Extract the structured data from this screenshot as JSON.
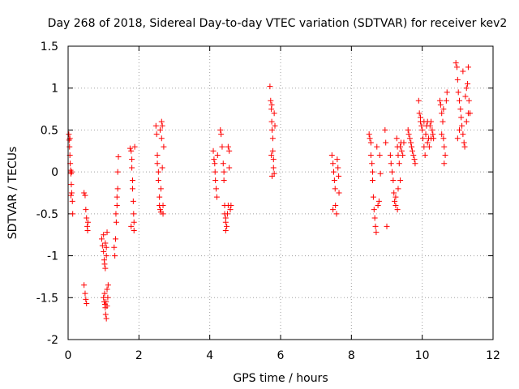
{
  "chart_data": {
    "type": "scatter",
    "title": "Day 268 of 2018, Sidereal Day-to-day VTEC variation (SDTVAR) for receiver kev2",
    "xlabel": "GPS time / hours",
    "ylabel": "SDTVAR / TECUs",
    "xlim": [
      0,
      12
    ],
    "ylim": [
      -2,
      1.5
    ],
    "xticks": [
      0,
      2,
      4,
      6,
      8,
      10,
      12
    ],
    "xtick_labels": [
      "0",
      "2",
      "4",
      "6",
      "8",
      "10",
      "12"
    ],
    "yticks": [
      -2,
      -1.5,
      -1,
      -0.5,
      0,
      0.5,
      1,
      1.5
    ],
    "ytick_labels": [
      "-2",
      "-1.5",
      "-1",
      "-0.5",
      "0",
      "0.5",
      "1",
      "1.5"
    ],
    "grid": true,
    "marker": "+",
    "color": "#ff0000",
    "series": [
      {
        "name": "kev2",
        "points": [
          [
            0.02,
            0.45
          ],
          [
            0.03,
            0.38
          ],
          [
            0.04,
            0.3
          ],
          [
            0.05,
            0.2
          ],
          [
            0.06,
            0.1
          ],
          [
            0.07,
            0.02
          ],
          [
            0.08,
            -0.02
          ],
          [
            0.09,
            -0.15
          ],
          [
            0.1,
            -0.25
          ],
          [
            0.12,
            -0.35
          ],
          [
            0.13,
            -0.5
          ],
          [
            0.05,
            0.4
          ],
          [
            0.08,
            -0.28
          ],
          [
            0.1,
            0.0
          ],
          [
            0.45,
            -0.25
          ],
          [
            0.48,
            -0.28
          ],
          [
            0.5,
            -0.45
          ],
          [
            0.52,
            -0.55
          ],
          [
            0.54,
            -0.65
          ],
          [
            0.55,
            -0.7
          ],
          [
            0.56,
            -0.6
          ],
          [
            0.45,
            -1.35
          ],
          [
            0.48,
            -1.45
          ],
          [
            0.5,
            -1.52
          ],
          [
            0.52,
            -1.57
          ],
          [
            0.95,
            -0.8
          ],
          [
            0.97,
            -0.88
          ],
          [
            1.0,
            -0.95
          ],
          [
            1.02,
            -1.05
          ],
          [
            1.03,
            -1.1
          ],
          [
            1.05,
            -1.15
          ],
          [
            1.0,
            -0.75
          ],
          [
            1.05,
            -0.85
          ],
          [
            1.08,
            -0.9
          ],
          [
            1.1,
            -0.72
          ],
          [
            1.08,
            -1.0
          ],
          [
            1.0,
            -1.5
          ],
          [
            1.02,
            -1.55
          ],
          [
            1.04,
            -1.58
          ],
          [
            1.05,
            -1.62
          ],
          [
            1.06,
            -1.7
          ],
          [
            1.08,
            -1.75
          ],
          [
            1.1,
            -1.4
          ],
          [
            1.12,
            -1.5
          ],
          [
            1.1,
            -1.6
          ],
          [
            1.13,
            -1.35
          ],
          [
            1.03,
            -1.45
          ],
          [
            1.07,
            -1.55
          ],
          [
            1.3,
            -0.9
          ],
          [
            1.32,
            -1.0
          ],
          [
            1.34,
            -0.8
          ],
          [
            1.36,
            -0.6
          ],
          [
            1.38,
            -0.4
          ],
          [
            1.38,
            -0.3
          ],
          [
            1.4,
            -0.2
          ],
          [
            1.4,
            0.0
          ],
          [
            1.42,
            0.18
          ],
          [
            1.35,
            -0.5
          ],
          [
            1.75,
            0.28
          ],
          [
            1.78,
            0.25
          ],
          [
            1.8,
            0.15
          ],
          [
            1.8,
            0.05
          ],
          [
            1.82,
            -0.1
          ],
          [
            1.82,
            -0.2
          ],
          [
            1.84,
            -0.35
          ],
          [
            1.85,
            -0.5
          ],
          [
            1.86,
            -0.6
          ],
          [
            1.86,
            -0.7
          ],
          [
            1.88,
            0.3
          ],
          [
            1.78,
            -0.65
          ],
          [
            2.48,
            0.55
          ],
          [
            2.5,
            0.45
          ],
          [
            2.52,
            0.2
          ],
          [
            2.52,
            0.1
          ],
          [
            2.55,
            0.0
          ],
          [
            2.55,
            -0.1
          ],
          [
            2.58,
            -0.3
          ],
          [
            2.58,
            -0.4
          ],
          [
            2.6,
            -0.45
          ],
          [
            2.62,
            -0.48
          ],
          [
            2.64,
            0.4
          ],
          [
            2.64,
            0.6
          ],
          [
            2.66,
            0.55
          ],
          [
            2.66,
            0.05
          ],
          [
            2.68,
            -0.4
          ],
          [
            2.68,
            -0.5
          ],
          [
            2.7,
            0.3
          ],
          [
            2.6,
            0.5
          ],
          [
            2.62,
            -0.2
          ],
          [
            4.1,
            0.25
          ],
          [
            4.12,
            0.15
          ],
          [
            4.14,
            0.1
          ],
          [
            4.15,
            0.0
          ],
          [
            4.16,
            -0.1
          ],
          [
            4.18,
            -0.2
          ],
          [
            4.2,
            -0.3
          ],
          [
            4.22,
            0.2
          ],
          [
            4.3,
            0.5
          ],
          [
            4.32,
            0.45
          ],
          [
            4.35,
            0.3
          ],
          [
            4.38,
            0.1
          ],
          [
            4.4,
            0.0
          ],
          [
            4.4,
            -0.1
          ],
          [
            4.42,
            -0.4
          ],
          [
            4.42,
            -0.5
          ],
          [
            4.45,
            -0.55
          ],
          [
            4.45,
            -0.6
          ],
          [
            4.48,
            -0.65
          ],
          [
            4.5,
            -0.5
          ],
          [
            4.52,
            -0.4
          ],
          [
            4.52,
            0.3
          ],
          [
            4.55,
            0.25
          ],
          [
            4.55,
            0.05
          ],
          [
            4.58,
            -0.45
          ],
          [
            4.6,
            -0.4
          ],
          [
            4.45,
            -0.7
          ],
          [
            5.7,
            1.02
          ],
          [
            5.72,
            0.85
          ],
          [
            5.74,
            0.75
          ],
          [
            5.75,
            0.6
          ],
          [
            5.76,
            0.5
          ],
          [
            5.78,
            0.4
          ],
          [
            5.78,
            0.25
          ],
          [
            5.8,
            0.15
          ],
          [
            5.8,
            0.05
          ],
          [
            5.82,
            -0.02
          ],
          [
            5.75,
            0.8
          ],
          [
            5.82,
            0.7
          ],
          [
            5.84,
            0.55
          ],
          [
            5.74,
            0.2
          ],
          [
            5.76,
            -0.05
          ],
          [
            7.45,
            0.2
          ],
          [
            7.48,
            0.1
          ],
          [
            7.5,
            0.0
          ],
          [
            7.52,
            -0.1
          ],
          [
            7.54,
            -0.2
          ],
          [
            7.55,
            -0.4
          ],
          [
            7.58,
            -0.5
          ],
          [
            7.6,
            0.15
          ],
          [
            7.62,
            0.05
          ],
          [
            7.64,
            -0.05
          ],
          [
            7.65,
            -0.25
          ],
          [
            7.48,
            -0.45
          ],
          [
            8.5,
            0.45
          ],
          [
            8.52,
            0.4
          ],
          [
            8.55,
            0.35
          ],
          [
            8.55,
            0.2
          ],
          [
            8.58,
            0.1
          ],
          [
            8.6,
            0.0
          ],
          [
            8.6,
            -0.1
          ],
          [
            8.62,
            -0.3
          ],
          [
            8.64,
            -0.45
          ],
          [
            8.66,
            -0.55
          ],
          [
            8.68,
            -0.65
          ],
          [
            8.7,
            -0.72
          ],
          [
            8.72,
            0.3
          ],
          [
            8.75,
            -0.4
          ],
          [
            8.78,
            -0.35
          ],
          [
            8.8,
            0.2
          ],
          [
            8.82,
            -0.02
          ],
          [
            8.95,
            0.5
          ],
          [
            8.97,
            0.35
          ],
          [
            9.0,
            -0.65
          ],
          [
            9.1,
            0.2
          ],
          [
            9.12,
            0.1
          ],
          [
            9.15,
            0.0
          ],
          [
            9.18,
            -0.1
          ],
          [
            9.2,
            -0.25
          ],
          [
            9.22,
            -0.35
          ],
          [
            9.25,
            -0.4
          ],
          [
            9.28,
            0.4
          ],
          [
            9.3,
            0.3
          ],
          [
            9.32,
            0.2
          ],
          [
            9.35,
            0.1
          ],
          [
            9.38,
            0.3
          ],
          [
            9.4,
            0.35
          ],
          [
            9.42,
            0.25
          ],
          [
            9.45,
            0.2
          ],
          [
            9.48,
            0.35
          ],
          [
            9.3,
            -0.45
          ],
          [
            9.25,
            -0.3
          ],
          [
            9.32,
            -0.2
          ],
          [
            9.38,
            -0.1
          ],
          [
            9.6,
            0.5
          ],
          [
            9.62,
            0.45
          ],
          [
            9.65,
            0.4
          ],
          [
            9.68,
            0.35
          ],
          [
            9.7,
            0.3
          ],
          [
            9.72,
            0.25
          ],
          [
            9.75,
            0.2
          ],
          [
            9.78,
            0.15
          ],
          [
            9.8,
            0.1
          ],
          [
            9.9,
            0.85
          ],
          [
            9.92,
            0.7
          ],
          [
            9.95,
            0.6
          ],
          [
            9.98,
            0.55
          ],
          [
            10.0,
            0.5
          ],
          [
            10.02,
            0.4
          ],
          [
            10.05,
            0.3
          ],
          [
            10.08,
            0.2
          ],
          [
            10.1,
            0.45
          ],
          [
            10.12,
            0.55
          ],
          [
            10.15,
            0.6
          ],
          [
            10.18,
            0.4
          ],
          [
            10.2,
            0.3
          ],
          [
            10.22,
            0.55
          ],
          [
            10.25,
            0.6
          ],
          [
            10.28,
            0.5
          ],
          [
            10.3,
            0.45
          ],
          [
            10.32,
            0.4
          ],
          [
            9.95,
            0.65
          ],
          [
            10.05,
            0.6
          ],
          [
            10.15,
            0.35
          ],
          [
            10.25,
            0.4
          ],
          [
            10.5,
            0.85
          ],
          [
            10.52,
            0.8
          ],
          [
            10.55,
            0.7
          ],
          [
            10.58,
            0.6
          ],
          [
            10.6,
            0.4
          ],
          [
            10.62,
            0.3
          ],
          [
            10.65,
            0.2
          ],
          [
            10.62,
            0.1
          ],
          [
            10.68,
            0.85
          ],
          [
            10.7,
            0.95
          ],
          [
            10.6,
            0.75
          ],
          [
            10.55,
            0.45
          ],
          [
            10.95,
            1.3
          ],
          [
            10.98,
            1.25
          ],
          [
            11.0,
            1.1
          ],
          [
            11.02,
            0.95
          ],
          [
            11.05,
            0.85
          ],
          [
            11.08,
            0.75
          ],
          [
            11.1,
            0.65
          ],
          [
            11.12,
            0.55
          ],
          [
            11.15,
            0.45
          ],
          [
            11.18,
            0.35
          ],
          [
            11.2,
            0.3
          ],
          [
            11.22,
            0.9
          ],
          [
            11.25,
            1.0
          ],
          [
            11.28,
            1.05
          ],
          [
            11.3,
            1.25
          ],
          [
            11.32,
            0.85
          ],
          [
            11.35,
            0.7
          ],
          [
            11.0,
            0.4
          ],
          [
            11.05,
            0.5
          ],
          [
            11.15,
            1.2
          ],
          [
            11.25,
            0.6
          ],
          [
            11.3,
            0.7
          ]
        ]
      }
    ]
  }
}
